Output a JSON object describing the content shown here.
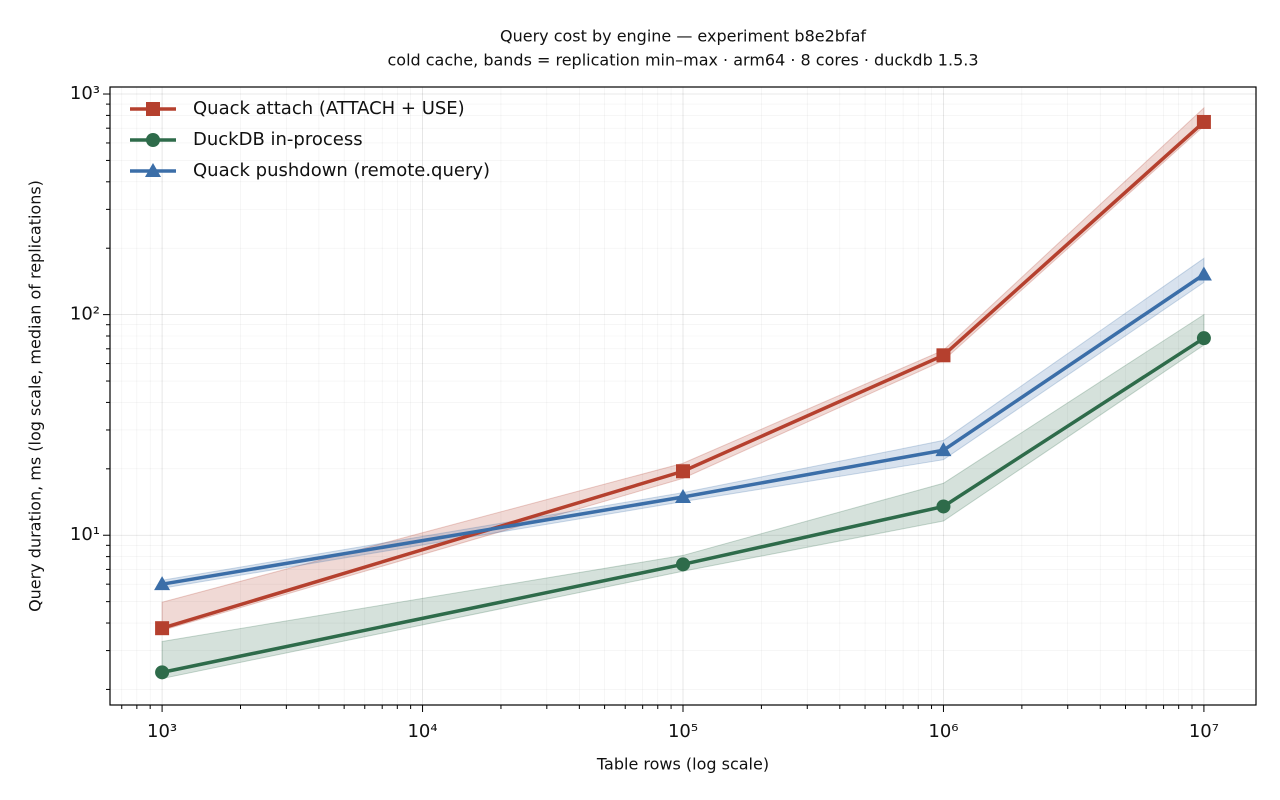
{
  "chart_data": {
    "type": "line",
    "title": "Query cost by engine — experiment b8e2bfaf",
    "subtitle": "cold cache, bands = replication min–max · arm64 · 8 cores · duckdb 1.5.3",
    "x_label": "Table rows (log scale)",
    "y_label": "Query duration, ms (log scale, median of replications)",
    "x": [
      1000,
      100000,
      1000000,
      10000000
    ],
    "xscale": "log",
    "yscale": "log",
    "xlim": [
      630.957,
      15848932
    ],
    "ylim": [
      1.7,
      1076
    ],
    "xticks": [
      {
        "value": 1000,
        "label": "10³"
      },
      {
        "value": 10000,
        "label": "10⁴"
      },
      {
        "value": 100000,
        "label": "10⁵"
      },
      {
        "value": 1000000,
        "label": "10⁶"
      },
      {
        "value": 10000000,
        "label": "10⁷"
      }
    ],
    "yticks": [
      {
        "value": 10,
        "label": "10¹"
      },
      {
        "value": 100,
        "label": "10²"
      },
      {
        "value": 1000,
        "label": "10³"
      }
    ],
    "grid": true,
    "minor_grid": true,
    "legend": "upper left",
    "series": [
      {
        "name": "Quack attach (ATTACH + USE)",
        "color": "#b5402e",
        "marker": "square",
        "values": [
          3.79,
          19.5,
          65.4,
          747
        ],
        "lower": [
          3.7,
          18.1,
          62,
          716
        ],
        "upper": [
          4.97,
          21.2,
          69,
          865
        ]
      },
      {
        "name": "DuckDB in-process",
        "color": "#2e6b4a",
        "marker": "circle",
        "values": [
          2.39,
          7.38,
          13.5,
          78.2
        ],
        "lower": [
          2.24,
          6.87,
          11.6,
          72.8
        ],
        "upper": [
          3.3,
          8.1,
          17.2,
          100
        ]
      },
      {
        "name": "Quack pushdown (remote.query)",
        "color": "#3b6ea8",
        "marker": "triangle",
        "values": [
          6.0,
          14.9,
          24.3,
          152
        ],
        "lower": [
          5.75,
          14.2,
          22.0,
          140
        ],
        "upper": [
          6.25,
          15.6,
          26.9,
          180
        ]
      }
    ]
  }
}
